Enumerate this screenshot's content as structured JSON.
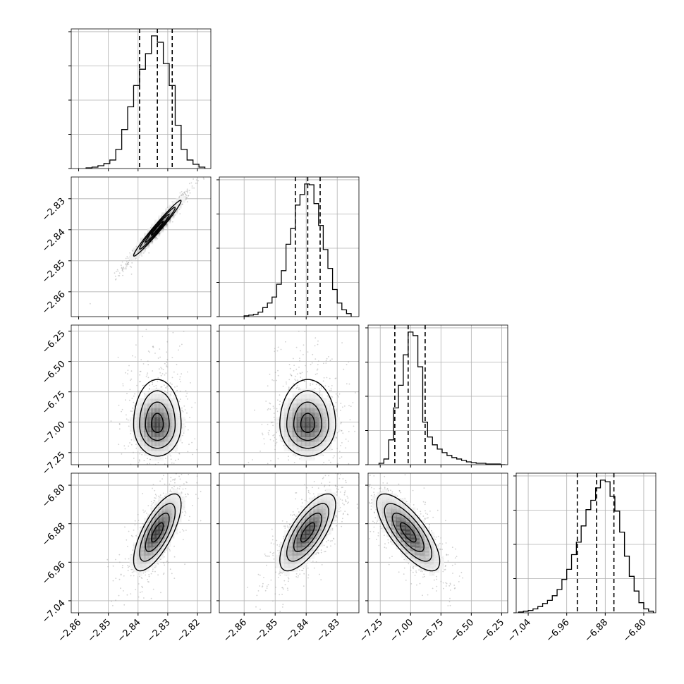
{
  "chart_data": {
    "type": "corner",
    "n_params": 4,
    "grid": true,
    "param_ranges": [
      [
        -2.8625,
        -2.8155
      ],
      [
        -2.868,
        -2.823
      ],
      [
        -7.35,
        -6.2
      ],
      [
        -7.065,
        -6.775
      ]
    ],
    "x_tick_labels": [
      [
        "−2.86",
        "−2.85",
        "−2.84",
        "−2.83",
        "−2.82"
      ],
      [
        "−2.86",
        "−2.85",
        "−2.84",
        "−2.83"
      ],
      [
        "−7.25",
        "−7.00",
        "−6.75",
        "−6.50",
        "−6.25"
      ],
      [
        "−7.04",
        "−6.96",
        "−6.88",
        "−6.80"
      ]
    ],
    "x_tick_values": [
      [
        -2.86,
        -2.85,
        -2.84,
        -2.83,
        -2.82
      ],
      [
        -2.86,
        -2.85,
        -2.84,
        -2.83
      ],
      [
        -7.25,
        -7.0,
        -6.75,
        -6.5,
        -6.25
      ],
      [
        -7.04,
        -6.96,
        -6.88,
        -6.8
      ]
    ],
    "y_tick_labels": [
      [],
      [
        "−2.83",
        "−2.84",
        "−2.85",
        "−2.86"
      ],
      [
        "−6.25",
        "−6.50",
        "−6.75",
        "−7.00",
        "−7.25"
      ],
      [
        "−6.80",
        "−6.88",
        "−6.96",
        "−7.04"
      ]
    ],
    "y_tick_values": [
      [],
      [
        -2.83,
        -2.84,
        -2.85,
        -2.86
      ],
      [
        -6.25,
        -6.5,
        -6.75,
        -7.0,
        -7.25
      ],
      [
        -6.8,
        -6.88,
        -6.96,
        -7.04
      ]
    ],
    "histograms": [
      {
        "param": 0,
        "bins": [
          -2.8575,
          -2.8555,
          -2.8535,
          -2.8515,
          -2.8495,
          -2.8475,
          -2.8455,
          -2.8435,
          -2.8415,
          -2.8395,
          -2.8375,
          -2.8355,
          -2.8335,
          -2.8315,
          -2.8295,
          -2.8275,
          -2.8255,
          -2.8235,
          -2.8215,
          -2.8195
        ],
        "counts": [
          1,
          2,
          4,
          7,
          12,
          27,
          55,
          87,
          117,
          140,
          162,
          187,
          178,
          148,
          117,
          61,
          27,
          12,
          6,
          2
        ],
        "quantiles": [
          -2.8395,
          -2.8335,
          -2.8285
        ]
      },
      {
        "param": 1,
        "bins": [
          -2.86,
          -2.8585,
          -2.857,
          -2.8555,
          -2.854,
          -2.8525,
          -2.851,
          -2.8495,
          -2.848,
          -2.8465,
          -2.845,
          -2.8435,
          -2.842,
          -2.8405,
          -2.839,
          -2.8375,
          -2.836,
          -2.8345,
          -2.833,
          -2.8315,
          -2.83,
          -2.8285,
          -2.827
        ],
        "counts": [
          1,
          2,
          3,
          6,
          12,
          18,
          26,
          43,
          61,
          96,
          117,
          148,
          162,
          176,
          175,
          150,
          121,
          89,
          64,
          36,
          18,
          9,
          4
        ],
        "quantiles": [
          -2.8435,
          -2.8395,
          -2.8355
        ]
      },
      {
        "param": 2,
        "bins": [
          -7.26,
          -7.22,
          -7.18,
          -7.14,
          -7.1,
          -7.06,
          -7.02,
          -6.98,
          -6.94,
          -6.9,
          -6.86,
          -6.82,
          -6.78,
          -6.74,
          -6.7,
          -6.66,
          -6.62,
          -6.58,
          -6.54,
          -6.5,
          -6.46,
          -6.42,
          -6.38,
          -6.34,
          -6.3,
          -6.26
        ],
        "counts": [
          2,
          8,
          35,
          80,
          112,
          155,
          187,
          182,
          138,
          60,
          39,
          28,
          22,
          17,
          13,
          10,
          8,
          6,
          4,
          3,
          2,
          2,
          1,
          1,
          1,
          0
        ],
        "quantiles": [
          -7.13,
          -7.02,
          -6.88
        ]
      },
      {
        "param": 3,
        "bins": [
          -7.06,
          -7.05,
          -7.04,
          -7.03,
          -7.02,
          -7.01,
          -7.0,
          -6.99,
          -6.98,
          -6.97,
          -6.96,
          -6.95,
          -6.94,
          -6.93,
          -6.92,
          -6.91,
          -6.9,
          -6.89,
          -6.88,
          -6.87,
          -6.86,
          -6.85,
          -6.84,
          -6.83,
          -6.82,
          -6.81,
          -6.8,
          -6.79
        ],
        "counts": [
          1,
          2,
          3,
          5,
          8,
          12,
          16,
          22,
          30,
          43,
          56,
          75,
          91,
          112,
          133,
          145,
          161,
          171,
          169,
          150,
          131,
          104,
          73,
          47,
          28,
          13,
          5,
          2
        ],
        "quantiles": [
          -6.938,
          -6.898,
          -6.862
        ]
      }
    ],
    "correlations": [
      {
        "x": 0,
        "y": 1,
        "sx": 0.004,
        "sy": 0.0045,
        "rho": 0.98,
        "cx": -2.8335,
        "cy": -2.8395,
        "tail": 0
      },
      {
        "x": 0,
        "y": 2,
        "sx": 0.004,
        "sy": 0.13,
        "rho": 0.0,
        "cx": -2.8335,
        "cy": -7.02,
        "tail": 0.16
      },
      {
        "x": 1,
        "y": 2,
        "sx": 0.0045,
        "sy": 0.13,
        "rho": 0.0,
        "cx": -2.8395,
        "cy": -7.02,
        "tail": 0.16
      },
      {
        "x": 0,
        "y": 3,
        "sx": 0.004,
        "sy": 0.04,
        "rho": 0.72,
        "cx": -2.8335,
        "cy": -6.898,
        "tail": 0
      },
      {
        "x": 1,
        "y": 3,
        "sx": 0.0045,
        "sy": 0.04,
        "rho": 0.72,
        "cx": -2.8395,
        "cy": -6.898,
        "tail": 0
      },
      {
        "x": 2,
        "y": 3,
        "sx": 0.13,
        "sy": 0.04,
        "rho": -0.75,
        "cx": -7.02,
        "cy": -6.898,
        "tail": 0
      }
    ],
    "contour_levels_sigma": [
      0.5,
      1.0,
      1.5,
      2.0
    ]
  }
}
